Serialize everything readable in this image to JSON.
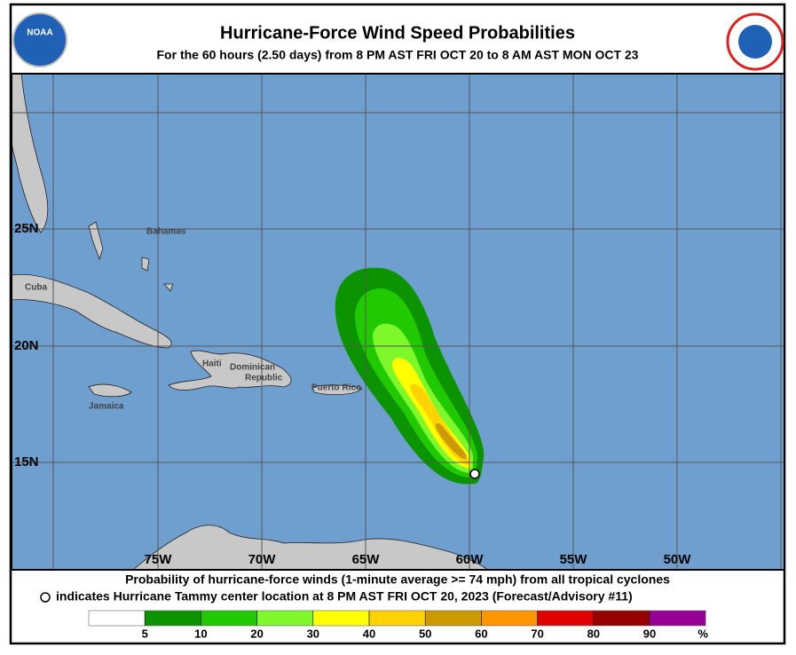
{
  "header": {
    "title": "Hurricane-Force Wind Speed Probabilities",
    "subtitle": "For the  60 hours (2.50 days) from 8 PM AST FRI OCT 20 to 8 AM AST MON OCT 23",
    "logo_left": "NOAA"
  },
  "map": {
    "lat_labels": [
      "25N",
      "20N",
      "15N"
    ],
    "lon_labels": [
      "75W",
      "70W",
      "65W",
      "60W",
      "55W",
      "50W"
    ],
    "places": [
      "Bahamas",
      "Cuba",
      "Haiti",
      "Dominican",
      "Republic",
      "Jamaica",
      "Puerto Rico"
    ]
  },
  "caption": [
    "Probability of hurricane-force winds (1-minute average >= 74 mph) from all tropical cyclones",
    "indicates Hurricane Tammy center location at 8 PM AST FRI OCT 20, 2023 (Forecast/Advisory #11)"
  ],
  "legend": {
    "ticks": [
      5,
      10,
      20,
      30,
      40,
      50,
      60,
      70,
      80,
      90
    ],
    "unit": "%",
    "colors": [
      "#ffffff",
      "#0b9400",
      "#21c900",
      "#7ef72b",
      "#ffff00",
      "#ffd200",
      "#cc9a00",
      "#ff9600",
      "#e00000",
      "#960000",
      "#960096"
    ]
  }
}
